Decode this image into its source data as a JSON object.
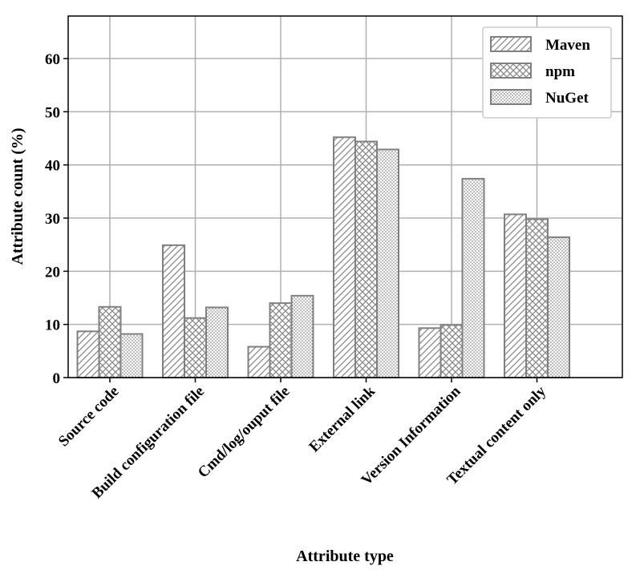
{
  "chart_data": {
    "type": "bar",
    "xlabel": "Attribute type",
    "ylabel": "Attribute count (%)",
    "categories": [
      "Source code",
      "Build configuration file",
      "Cmd/log/ouput file",
      "External link",
      "Version Information",
      "Textual content only"
    ],
    "series": [
      {
        "name": "Maven",
        "color": "#808080",
        "hatch": "///",
        "values": [
          8.7,
          24.9,
          5.8,
          45.2,
          9.3,
          30.7
        ]
      },
      {
        "name": "npm",
        "color": "#808080",
        "hatch": "xxx",
        "values": [
          13.3,
          11.2,
          14.0,
          44.4,
          9.9,
          29.8
        ]
      },
      {
        "name": "NuGet",
        "color": "#808080",
        "hatch": "...",
        "values": [
          8.2,
          13.2,
          15.4,
          42.9,
          37.4,
          26.4
        ]
      }
    ],
    "ylim": [
      0,
      68
    ],
    "yticks": [
      0,
      10,
      20,
      30,
      40,
      50,
      60
    ],
    "grid": true,
    "legend": "upper right"
  }
}
